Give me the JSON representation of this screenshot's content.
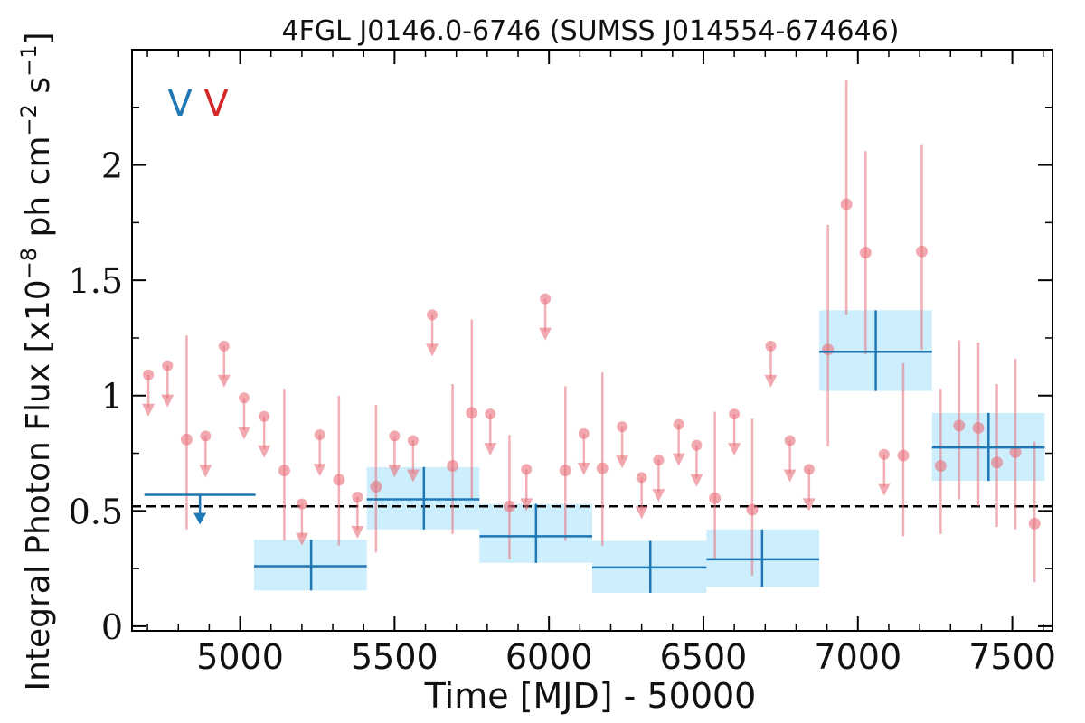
{
  "chart_data": {
    "type": "scatter",
    "title": "4FGL J0146.0-6746 (SUMSS J014554-674646)",
    "xlabel": "Time [MJD] - 50000",
    "ylabel": "Integral Photon Flux [x10",
    "ylabel_exp": "−8",
    "ylabel_unit1": " ph cm",
    "ylabel_unit1_exp": "−2",
    "ylabel_unit2": " s",
    "ylabel_unit2_exp": "−1",
    "ylabel_close": "]",
    "xlim": [
      4650,
      7630
    ],
    "ylim": [
      -0.02,
      2.5
    ],
    "x_ticks": [
      5000,
      5500,
      6000,
      6500,
      7000,
      7500
    ],
    "x_tick_labels": [
      "5000",
      "5500",
      "6000",
      "6500",
      "7000",
      "7500"
    ],
    "y_ticks": [
      0,
      0.5,
      1,
      1.5,
      2
    ],
    "y_tick_labels": [
      "0",
      "0.5",
      "1",
      "1.5",
      "2"
    ],
    "reference_line": {
      "y": 0.52,
      "style": "dashed",
      "color": "#000000"
    },
    "legend_markers": [
      {
        "text": "V",
        "color": "#1f77b4"
      },
      {
        "text": "V",
        "color": "#d62728"
      }
    ],
    "series": [
      {
        "color": "#1f77b4",
        "box_color": "#cdeefc",
        "upper_limits": [
          {
            "x_start": 4690,
            "x_end": 5050,
            "x": 4870,
            "y": 0.57
          }
        ],
        "points": [
          {
            "x_start": 5045,
            "x_end": 5410,
            "x": 5230,
            "y": 0.26,
            "y_low": 0.155,
            "y_high": 0.375
          },
          {
            "x_start": 5410,
            "x_end": 5775,
            "x": 5595,
            "y": 0.55,
            "y_low": 0.42,
            "y_high": 0.69
          },
          {
            "x_start": 5775,
            "x_end": 6140,
            "x": 5958,
            "y": 0.39,
            "y_low": 0.275,
            "y_high": 0.53
          },
          {
            "x_start": 6140,
            "x_end": 6510,
            "x": 6328,
            "y": 0.255,
            "y_low": 0.145,
            "y_high": 0.37
          },
          {
            "x_start": 6510,
            "x_end": 6875,
            "x": 6690,
            "y": 0.29,
            "y_low": 0.17,
            "y_high": 0.42
          },
          {
            "x_start": 6875,
            "x_end": 7240,
            "x": 7058,
            "y": 1.19,
            "y_low": 1.02,
            "y_high": 1.37
          },
          {
            "x_start": 7240,
            "x_end": 7605,
            "x": 7423,
            "y": 0.775,
            "y_low": 0.63,
            "y_high": 0.925
          }
        ]
      },
      {
        "color": "#e8707a",
        "points": [
          {
            "x": 4827,
            "y": 0.81,
            "y_low": 0.42,
            "y_high": 1.26
          },
          {
            "x": 5143,
            "y": 0.675,
            "y_low": 0.37,
            "y_high": 1.03
          },
          {
            "x": 5320,
            "y": 0.635,
            "y_low": 0.35,
            "y_high": 1.0
          },
          {
            "x": 5440,
            "y": 0.605,
            "y_low": 0.32,
            "y_high": 0.96
          },
          {
            "x": 5688,
            "y": 0.695,
            "y_low": 0.4,
            "y_high": 1.05
          },
          {
            "x": 5750,
            "y": 0.925,
            "y_low": 0.55,
            "y_high": 1.33
          },
          {
            "x": 5872,
            "y": 0.52,
            "y_low": 0.29,
            "y_high": 0.83
          },
          {
            "x": 6053,
            "y": 0.675,
            "y_low": 0.37,
            "y_high": 1.04
          },
          {
            "x": 6173,
            "y": 0.685,
            "y_low": 0.35,
            "y_high": 1.1
          },
          {
            "x": 6537,
            "y": 0.555,
            "y_low": 0.29,
            "y_high": 0.93
          },
          {
            "x": 6658,
            "y": 0.505,
            "y_low": 0.22,
            "y_high": 0.9
          },
          {
            "x": 6903,
            "y": 1.2,
            "y_low": 0.78,
            "y_high": 1.74
          },
          {
            "x": 6963,
            "y": 1.83,
            "y_low": 1.35,
            "y_high": 2.37
          },
          {
            "x": 7025,
            "y": 1.62,
            "y_low": 1.18,
            "y_high": 2.06
          },
          {
            "x": 7147,
            "y": 0.74,
            "y_low": 0.39,
            "y_high": 1.14
          },
          {
            "x": 7207,
            "y": 1.625,
            "y_low": 1.2,
            "y_high": 2.09
          },
          {
            "x": 7268,
            "y": 0.695,
            "y_low": 0.4,
            "y_high": 1.03
          },
          {
            "x": 7328,
            "y": 0.87,
            "y_low": 0.55,
            "y_high": 1.24
          },
          {
            "x": 7390,
            "y": 0.86,
            "y_low": 0.52,
            "y_high": 1.23
          },
          {
            "x": 7450,
            "y": 0.71,
            "y_low": 0.43,
            "y_high": 1.05
          },
          {
            "x": 7510,
            "y": 0.755,
            "y_low": 0.42,
            "y_high": 1.16
          },
          {
            "x": 7572,
            "y": 0.445,
            "y_low": 0.19,
            "y_high": 0.8
          }
        ],
        "upper_limits": [
          {
            "x": 4703,
            "y": 1.09
          },
          {
            "x": 4765,
            "y": 1.13
          },
          {
            "x": 4888,
            "y": 0.825
          },
          {
            "x": 4948,
            "y": 1.215
          },
          {
            "x": 5013,
            "y": 0.99
          },
          {
            "x": 5078,
            "y": 0.91
          },
          {
            "x": 5200,
            "y": 0.53
          },
          {
            "x": 5258,
            "y": 0.83
          },
          {
            "x": 5380,
            "y": 0.56
          },
          {
            "x": 5500,
            "y": 0.825
          },
          {
            "x": 5560,
            "y": 0.805
          },
          {
            "x": 5622,
            "y": 1.35
          },
          {
            "x": 5810,
            "y": 0.92
          },
          {
            "x": 5927,
            "y": 0.68
          },
          {
            "x": 5988,
            "y": 1.42
          },
          {
            "x": 6113,
            "y": 0.835
          },
          {
            "x": 6237,
            "y": 0.865
          },
          {
            "x": 6300,
            "y": 0.645
          },
          {
            "x": 6355,
            "y": 0.72
          },
          {
            "x": 6420,
            "y": 0.875
          },
          {
            "x": 6478,
            "y": 0.785
          },
          {
            "x": 6600,
            "y": 0.92
          },
          {
            "x": 6718,
            "y": 1.215
          },
          {
            "x": 6780,
            "y": 0.805
          },
          {
            "x": 6842,
            "y": 0.68
          },
          {
            "x": 7085,
            "y": 0.745
          }
        ]
      }
    ]
  }
}
